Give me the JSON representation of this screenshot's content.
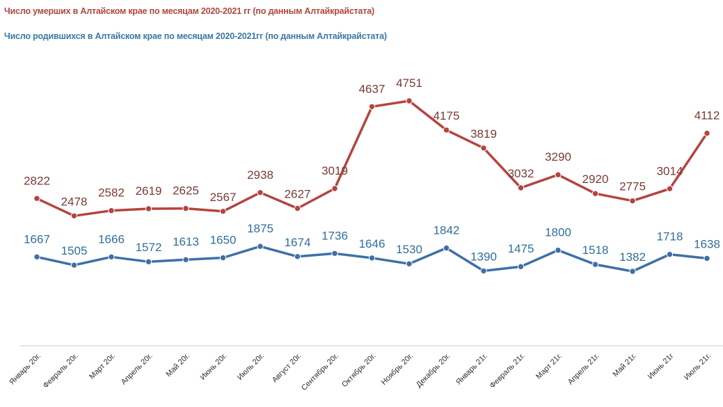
{
  "titles": {
    "deaths": "Число умерших в Алтайском крае  по месяцам  2020-2021 гг (по данным Алтайкрайстата)",
    "births": "Число родившихся в Алтайском крае по месяцам 2020-2021гг (по данным Алтайкрайстата)"
  },
  "colors": {
    "deaths": "#b5443f",
    "births": "#3f6fa6",
    "deaths_label": "#7a3a35",
    "births_label": "#2f6e9e",
    "axis": "#d9dde3"
  },
  "chart_data": {
    "type": "line",
    "categories": [
      "Январь 20г.",
      "Февраль 20г.",
      "Март 20г.",
      "Апрель 20г.",
      "Май 20г.",
      "Июнь 20г.",
      "Июль 20г.",
      "Август 20г.",
      "Сентябрь 20г.",
      "Октябрь 20г.",
      "Ноябрь 20г.",
      "Декабрь 20г.",
      "Январь 21г.",
      "Февраль 21г.",
      "Март 21г.",
      "Апрель 21г.",
      "Май 21г.",
      "Июнь 21г",
      "Июль 21г."
    ],
    "series": [
      {
        "key": "deaths",
        "values": [
          2822,
          2478,
          2582,
          2619,
          2625,
          2567,
          2938,
          2627,
          3019,
          4637,
          4751,
          4175,
          3819,
          3032,
          3290,
          2920,
          2775,
          3014,
          4112
        ]
      },
      {
        "key": "births",
        "values": [
          1667,
          1505,
          1666,
          1572,
          1613,
          1650,
          1875,
          1674,
          1736,
          1646,
          1530,
          1842,
          1390,
          1475,
          1800,
          1518,
          1382,
          1718,
          1638
        ]
      }
    ],
    "grid": false,
    "legend": "none"
  }
}
